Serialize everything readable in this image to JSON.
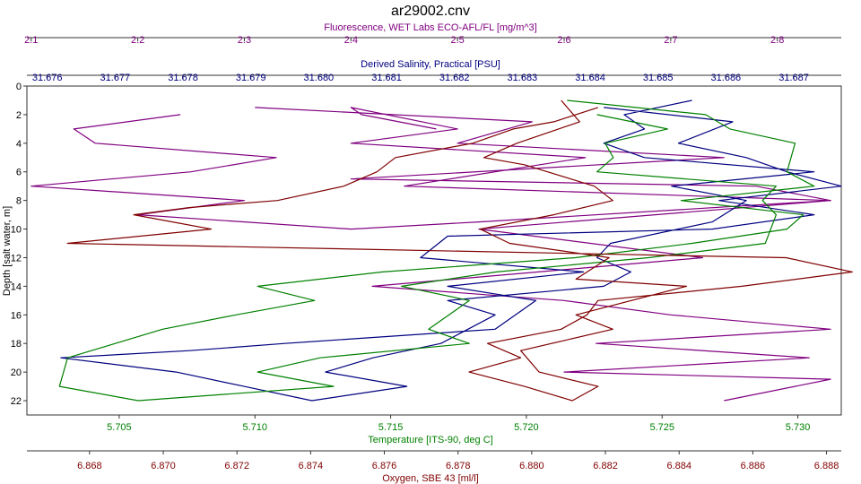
{
  "chart_data": {
    "type": "line",
    "title": "ar29002.cnv",
    "y_axis": {
      "label": "Depth [salt water, m]",
      "range": [
        0,
        23
      ],
      "inverted": true,
      "ticks": [
        0,
        2,
        4,
        6,
        8,
        10,
        12,
        14,
        16,
        18,
        20,
        22
      ],
      "color": "#000000"
    },
    "x_axes": [
      {
        "id": "fluorescence",
        "label": "Fluorescence, WET Labs ECO-AFL/FL [mg/m^3]",
        "position": "top-outer",
        "range": [
          2.096,
          2.86
        ],
        "ticks": [
          2.1,
          2.2,
          2.3,
          2.4,
          2.5,
          2.6,
          2.7,
          2.8
        ],
        "tick_labels": [
          "2.1",
          "2.2",
          "2.3",
          "2.4",
          "2.5",
          "2.6",
          "2.7",
          "2.8"
        ],
        "color": "#800080"
      },
      {
        "id": "salinity",
        "label": "Derived Salinity, Practical [PSU]",
        "position": "top-inner",
        "range": [
          31.6757,
          31.6877
        ],
        "ticks": [
          31.676,
          31.677,
          31.678,
          31.679,
          31.68,
          31.681,
          31.682,
          31.683,
          31.684,
          31.685,
          31.686,
          31.687
        ],
        "tick_labels": [
          "31.676",
          "31.677",
          "31.678",
          "31.679",
          "31.680",
          "31.681",
          "31.682",
          "31.683",
          "31.684",
          "31.685",
          "31.686",
          "31.687"
        ],
        "color": "#000080"
      },
      {
        "id": "temperature",
        "label": "Temperature [ITS-90, deg C]",
        "position": "bottom-inner",
        "range": [
          5.7016,
          5.7316
        ],
        "ticks": [
          5.705,
          5.71,
          5.715,
          5.72,
          5.725,
          5.73
        ],
        "tick_labels": [
          "5.705",
          "5.710",
          "5.715",
          "5.720",
          "5.725",
          "5.730"
        ],
        "color": "#008000"
      },
      {
        "id": "oxygen",
        "label": "Oxygen, SBE 43 [ml/l]",
        "position": "bottom-outer",
        "range": [
          6.8663,
          6.8884
        ],
        "ticks": [
          6.868,
          6.87,
          6.872,
          6.874,
          6.876,
          6.878,
          6.88,
          6.882,
          6.884,
          6.886,
          6.888
        ],
        "tick_labels": [
          "6.868",
          "6.870",
          "6.872",
          "6.874",
          "6.876",
          "6.878",
          "6.880",
          "6.882",
          "6.884",
          "6.886",
          "6.888"
        ],
        "color": "#800000"
      }
    ],
    "series": [
      {
        "name": "Fluorescence, WET Labs ECO-AFL/FL [mg/m^3]",
        "axis": "fluorescence",
        "color": "#800080",
        "points": [
          [
            2.24,
            2
          ],
          [
            2.14,
            3
          ],
          [
            2.16,
            4
          ],
          [
            2.33,
            5
          ],
          [
            2.25,
            6
          ],
          [
            2.1,
            7
          ],
          [
            2.3,
            8
          ],
          [
            2.2,
            9
          ],
          [
            2.4,
            10
          ],
          [
            2.52,
            9.5
          ],
          [
            2.85,
            8
          ],
          [
            2.45,
            7
          ],
          [
            2.62,
            5
          ],
          [
            2.4,
            4
          ],
          [
            2.5,
            3
          ],
          [
            2.4,
            1.5
          ],
          [
            2.41,
            2
          ],
          [
            2.48,
            3
          ]
        ]
      },
      {
        "name": "Fluorescence, WET Labs ECO-AFL/FL [mg/m^3]",
        "axis": "fluorescence",
        "color": "#800080",
        "points": [
          [
            2.31,
            1.5
          ],
          [
            2.57,
            2.5
          ],
          [
            2.5,
            4
          ],
          [
            2.75,
            5
          ],
          [
            2.4,
            6.5
          ],
          [
            2.78,
            7
          ],
          [
            2.85,
            8
          ],
          [
            2.52,
            10
          ],
          [
            2.73,
            12
          ],
          [
            2.42,
            14
          ],
          [
            2.6,
            15
          ],
          [
            2.7,
            16
          ],
          [
            2.85,
            17
          ],
          [
            2.63,
            18
          ],
          [
            2.83,
            19
          ],
          [
            2.6,
            20
          ],
          [
            2.85,
            20.5
          ],
          [
            2.75,
            22
          ]
        ]
      },
      {
        "name": "Derived Salinity, Practical [PSU]",
        "axis": "salinity",
        "color": "#000080",
        "points": [
          [
            31.6842,
            1.5
          ],
          [
            31.6861,
            2.5
          ],
          [
            31.6853,
            4
          ],
          [
            31.6863,
            5
          ],
          [
            31.6869,
            6
          ],
          [
            31.6877,
            7
          ],
          [
            31.6859,
            8
          ],
          [
            31.6873,
            9
          ],
          [
            31.6858,
            10
          ],
          [
            31.6819,
            10.5
          ],
          [
            31.6815,
            12
          ],
          [
            31.6839,
            13
          ],
          [
            31.6819,
            14
          ],
          [
            31.6832,
            15
          ],
          [
            31.6829,
            16
          ],
          [
            31.6826,
            17
          ],
          [
            31.6795,
            18
          ],
          [
            31.6781,
            18.5
          ],
          [
            31.6762,
            19
          ],
          [
            31.6779,
            20
          ],
          [
            31.6789,
            21
          ],
          [
            31.6799,
            22
          ],
          [
            31.6813,
            21
          ],
          [
            31.6801,
            20
          ],
          [
            31.6808,
            19
          ],
          [
            31.6818,
            18
          ],
          [
            31.6826,
            16
          ],
          [
            31.6819,
            15
          ],
          [
            31.6842,
            14
          ],
          [
            31.6846,
            13
          ],
          [
            31.6841,
            12
          ],
          [
            31.6843,
            11
          ],
          [
            31.6858,
            9.5
          ],
          [
            31.6863,
            8
          ],
          [
            31.6852,
            7
          ],
          [
            31.6873,
            6
          ],
          [
            31.6848,
            5
          ],
          [
            31.6842,
            4
          ],
          [
            31.6848,
            3
          ],
          [
            31.6845,
            2
          ],
          [
            31.6855,
            1
          ]
        ]
      },
      {
        "name": "Temperature [ITS-90, deg C]",
        "axis": "temperature",
        "color": "#008000",
        "points": [
          [
            5.7215,
            1
          ],
          [
            5.7266,
            2
          ],
          [
            5.7275,
            3
          ],
          [
            5.7299,
            4
          ],
          [
            5.7296,
            6
          ],
          [
            5.7306,
            7
          ],
          [
            5.7257,
            8
          ],
          [
            5.7302,
            9
          ],
          [
            5.7296,
            10
          ],
          [
            5.7261,
            11
          ],
          [
            5.7218,
            12
          ],
          [
            5.7147,
            13
          ],
          [
            5.7101,
            14
          ],
          [
            5.7122,
            15
          ],
          [
            5.7093,
            16
          ],
          [
            5.7066,
            17
          ],
          [
            5.7031,
            19
          ],
          [
            5.7028,
            21
          ],
          [
            5.7057,
            22
          ],
          [
            5.7129,
            21
          ],
          [
            5.7101,
            20
          ],
          [
            5.7124,
            19
          ],
          [
            5.7179,
            18
          ],
          [
            5.7164,
            17
          ],
          [
            5.7179,
            15
          ],
          [
            5.7154,
            14
          ],
          [
            5.7189,
            13
          ],
          [
            5.7245,
            12
          ],
          [
            5.7288,
            11
          ],
          [
            5.7292,
            9
          ],
          [
            5.7287,
            8
          ],
          [
            5.7292,
            7
          ],
          [
            5.7226,
            6
          ],
          [
            5.7232,
            5
          ],
          [
            5.7229,
            4
          ],
          [
            5.7252,
            3
          ],
          [
            5.7226,
            2
          ]
        ]
      },
      {
        "name": "Oxygen, SBE 43 [ml/l]",
        "axis": "oxygen",
        "color": "#800000",
        "points": [
          [
            6.8818,
            1.5
          ],
          [
            6.8806,
            2.5
          ],
          [
            6.8795,
            3
          ],
          [
            6.8784,
            4
          ],
          [
            6.8763,
            5
          ],
          [
            6.8758,
            6
          ],
          [
            6.8749,
            7
          ],
          [
            6.8731,
            8
          ],
          [
            6.8707,
            8.5
          ],
          [
            6.8692,
            9
          ],
          [
            6.8713,
            10
          ],
          [
            6.8674,
            11
          ],
          [
            6.8869,
            12
          ],
          [
            6.8887,
            13
          ],
          [
            6.8857,
            14
          ],
          [
            6.8818,
            15
          ],
          [
            6.8815,
            16
          ],
          [
            6.8808,
            17
          ],
          [
            6.8788,
            18
          ],
          [
            6.8797,
            19
          ],
          [
            6.8783,
            20
          ],
          [
            6.8798,
            21
          ],
          [
            6.8811,
            22
          ],
          [
            6.8818,
            21
          ],
          [
            6.8802,
            20
          ],
          [
            6.8797,
            18.5
          ],
          [
            6.8822,
            17
          ],
          [
            6.8812,
            16
          ],
          [
            6.8842,
            14
          ],
          [
            6.8812,
            13.5
          ],
          [
            6.8821,
            12
          ],
          [
            6.8794,
            11
          ],
          [
            6.8786,
            10
          ],
          [
            6.8806,
            9
          ],
          [
            6.8822,
            8
          ],
          [
            6.8817,
            7
          ],
          [
            6.8798,
            5.5
          ],
          [
            6.8787,
            5
          ],
          [
            6.8796,
            4
          ],
          [
            6.8813,
            2.5
          ],
          [
            6.8808,
            1
          ]
        ]
      }
    ]
  }
}
